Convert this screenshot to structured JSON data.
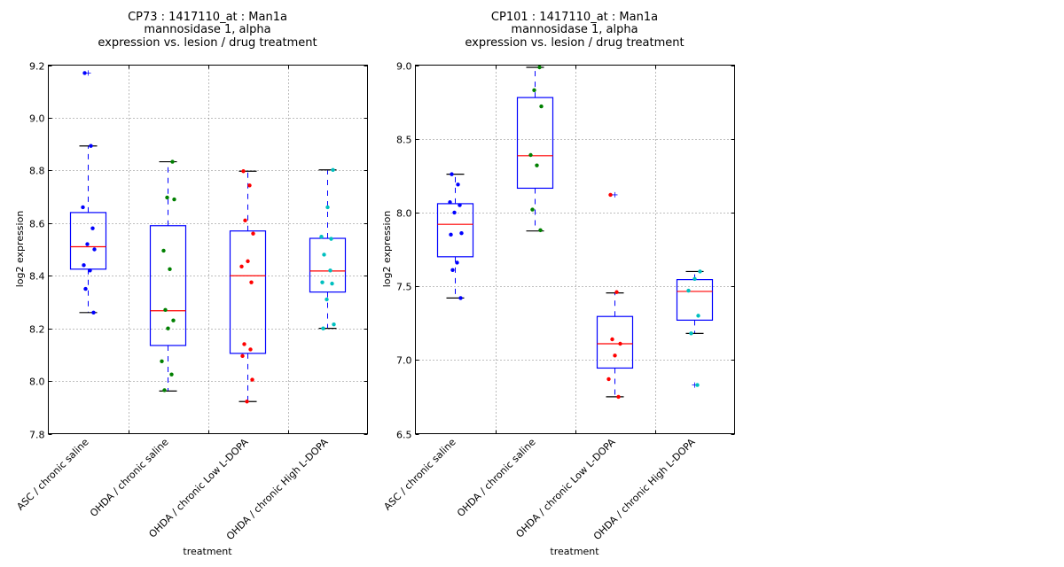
{
  "chart_data": [
    {
      "type": "box",
      "title_lines": [
        "CP73 : 1417110_at : Man1a",
        "mannosidase 1, alpha",
        "expression vs. lesion / drug treatment"
      ],
      "xlabel": "treatment",
      "ylabel": "log2 expression",
      "ylim": [
        7.8,
        9.2
      ],
      "yticks": [
        "7.8",
        "8.0",
        "8.2",
        "8.4",
        "8.6",
        "8.8",
        "9.0",
        "9.2"
      ],
      "grid": true,
      "categories": [
        "ASC / chronic saline",
        "OHDA / chronic saline",
        "OHDA / chronic Low L-DOPA",
        "OHDA / chronic High L-DOPA"
      ],
      "colors": [
        "#0000ff",
        "#008000",
        "#ff0000",
        "#00bfbf"
      ],
      "boxes": [
        {
          "q1": 8.425,
          "median": 8.51,
          "q3": 8.64,
          "whisker_low": 8.26,
          "whisker_high": 8.893,
          "outliers": [
            9.17
          ],
          "points": [
            9.17,
            8.893,
            8.66,
            8.58,
            8.52,
            8.5,
            8.44,
            8.42,
            8.35,
            8.26
          ]
        },
        {
          "q1": 8.135,
          "median": 8.267,
          "q3": 8.59,
          "whisker_low": 7.962,
          "whisker_high": 8.833,
          "outliers": [],
          "points": [
            8.833,
            8.697,
            8.69,
            8.495,
            8.425,
            8.27,
            8.23,
            8.2,
            8.075,
            8.025,
            7.965
          ]
        },
        {
          "q1": 8.105,
          "median": 8.4,
          "q3": 8.57,
          "whisker_low": 7.922,
          "whisker_high": 8.797,
          "outliers": [],
          "points": [
            8.797,
            8.743,
            8.61,
            8.56,
            8.455,
            8.435,
            8.375,
            8.14,
            8.12,
            8.095,
            8.005,
            7.922
          ]
        },
        {
          "q1": 8.338,
          "median": 8.418,
          "q3": 8.542,
          "whisker_low": 8.2,
          "whisker_high": 8.802,
          "outliers": [],
          "points": [
            8.802,
            8.66,
            8.548,
            8.54,
            8.48,
            8.42,
            8.375,
            8.37,
            8.31,
            8.215,
            8.2
          ]
        }
      ]
    },
    {
      "type": "box",
      "title_lines": [
        "CP101 : 1417110_at : Man1a",
        "mannosidase 1, alpha",
        "expression vs. lesion / drug treatment"
      ],
      "xlabel": "treatment",
      "ylabel": "log2 expression",
      "ylim": [
        6.5,
        9.0
      ],
      "yticks": [
        "6.5",
        "7.0",
        "7.5",
        "8.0",
        "8.5",
        "9.0"
      ],
      "grid": true,
      "categories": [
        "ASC / chronic saline",
        "OHDA / chronic saline",
        "OHDA / chronic Low L-DOPA",
        "OHDA / chronic High L-DOPA"
      ],
      "colors": [
        "#0000ff",
        "#008000",
        "#ff0000",
        "#00bfbf"
      ],
      "boxes": [
        {
          "q1": 7.7,
          "median": 7.92,
          "q3": 8.06,
          "whisker_low": 7.42,
          "whisker_high": 8.26,
          "outliers": [],
          "points": [
            8.26,
            8.19,
            8.07,
            8.05,
            8.0,
            7.86,
            7.85,
            7.66,
            7.61,
            7.42
          ]
        },
        {
          "q1": 8.165,
          "median": 8.385,
          "q3": 8.78,
          "whisker_low": 7.875,
          "whisker_high": 8.985,
          "outliers": [],
          "points": [
            8.985,
            8.83,
            8.72,
            8.39,
            8.32,
            8.02,
            7.88
          ]
        },
        {
          "q1": 6.945,
          "median": 7.11,
          "q3": 7.295,
          "whisker_low": 6.75,
          "whisker_high": 7.455,
          "outliers": [
            8.12
          ],
          "points": [
            8.12,
            7.46,
            7.14,
            7.11,
            7.03,
            6.87,
            6.75
          ]
        },
        {
          "q1": 7.27,
          "median": 7.465,
          "q3": 7.545,
          "whisker_low": 7.18,
          "whisker_high": 7.6,
          "outliers": [
            6.83
          ],
          "points": [
            7.6,
            7.55,
            7.47,
            7.3,
            7.18,
            6.83
          ]
        }
      ]
    }
  ]
}
